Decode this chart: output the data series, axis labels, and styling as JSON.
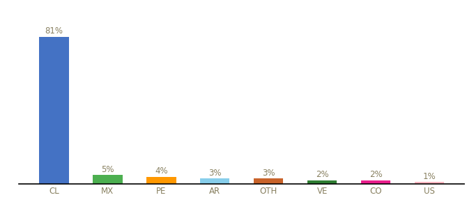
{
  "categories": [
    "CL",
    "MX",
    "PE",
    "AR",
    "OTH",
    "VE",
    "CO",
    "US"
  ],
  "values": [
    81,
    5,
    4,
    3,
    3,
    2,
    2,
    1
  ],
  "bar_colors": [
    "#4472C4",
    "#4CAF50",
    "#FF9800",
    "#87CEEB",
    "#C8632A",
    "#2E7D32",
    "#E91E8C",
    "#FFB6C1"
  ],
  "labels": [
    "81%",
    "5%",
    "4%",
    "3%",
    "3%",
    "2%",
    "2%",
    "1%"
  ],
  "ylim": [
    0,
    92
  ],
  "background_color": "#ffffff",
  "label_color": "#888060",
  "label_fontsize": 8.5,
  "tick_fontsize": 8.5,
  "tick_color": "#888060",
  "bar_width": 0.55
}
